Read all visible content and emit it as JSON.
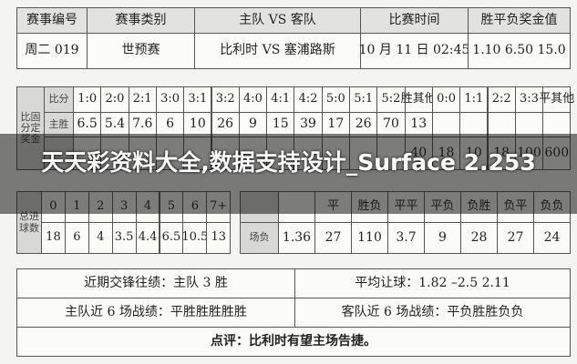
{
  "match_table": {
    "headers": [
      "赛事编号",
      "赛事类别",
      "主队 VS 客队",
      "比赛时间",
      "胜平负奖金值"
    ],
    "row": [
      "周二 019",
      "世预赛",
      "比利时 VS 塞浦路斯",
      "10 月 11 日 02:45",
      "1.10 6.50 15.0"
    ]
  },
  "score_table": {
    "label": "比固分定奖金",
    "header_label": "比分",
    "scores": [
      "1:0",
      "2:0",
      "2:1",
      "3:0",
      "3:1",
      "3:2",
      "4:0",
      "4:1",
      "4:2",
      "5:0",
      "5:1",
      "5:2",
      "胜其他",
      "0:0",
      "1:1",
      "2:2",
      "3:3",
      "平其他"
    ],
    "home_win_label": "主胜",
    "home_win_odds": [
      "6.5",
      "5.4",
      "7.6",
      "6",
      "10",
      "26",
      "9",
      "15",
      "39",
      "17",
      "26",
      "70",
      "13"
    ],
    "draw_odds": [
      "18",
      "10",
      "18",
      "100",
      "600"
    ],
    "other_partial": "40"
  },
  "goals_table": {
    "label": "总进球数",
    "goals": [
      "0",
      "1",
      "2",
      "3",
      "4",
      "5",
      "6",
      "7+"
    ],
    "odds": [
      "18",
      "6",
      "4",
      "3.5",
      "4.4",
      "6.5",
      "10.5",
      "13"
    ]
  },
  "half_full_table": {
    "label": "场负",
    "headers": [
      null,
      "平",
      "胜负",
      "平平",
      "平负",
      "负胜",
      "负平",
      "负负"
    ],
    "odds": [
      "1.36",
      "27",
      "110",
      "3.7",
      "9",
      "28",
      "27",
      "24"
    ]
  },
  "summary_table": {
    "rows": [
      [
        "近期交锋往绩：主队 3 胜",
        "平均让球：1.82 –2.5 2.11"
      ],
      [
        "主队近 6 场战绩：平胜胜胜胜胜",
        "客队近 6 场战绩：平负胜胜负负"
      ]
    ],
    "comment": "点评：比利时有望主场告捷。"
  },
  "overlay": {
    "title": "天天彩资料大全,数据支持设计_Surface 2.253"
  }
}
